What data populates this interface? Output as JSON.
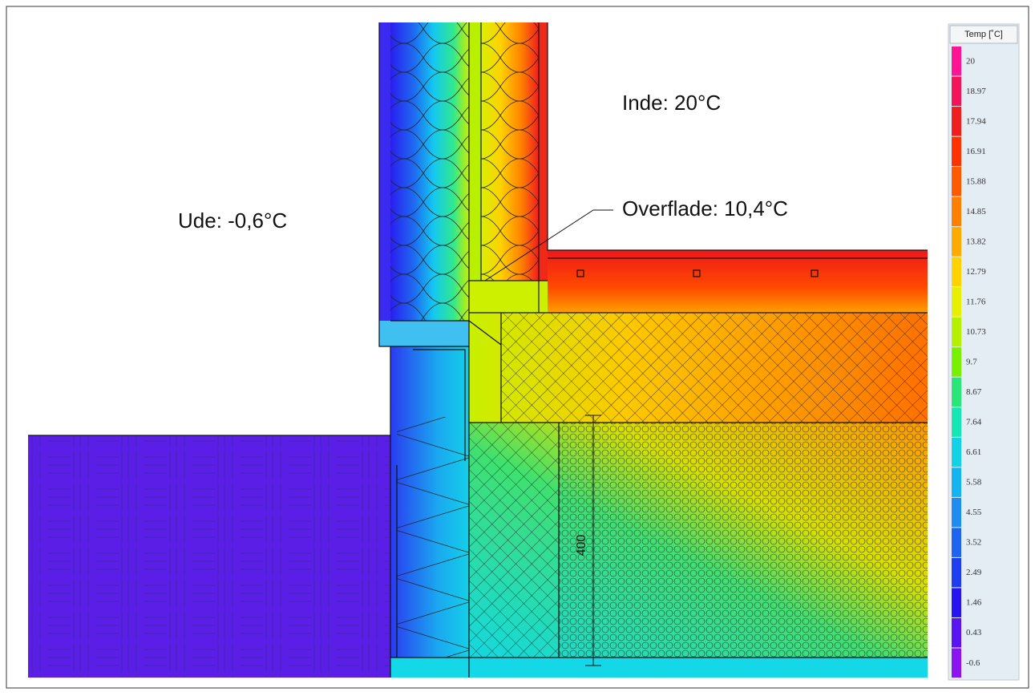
{
  "labels": {
    "inside": "Inde: 20°C",
    "outside": "Ude: -0,6°C",
    "surface": "Overflade: 10,4°C",
    "dimension": "400"
  },
  "legend": {
    "title": "Temp [˚C]",
    "entries": [
      {
        "label": "20",
        "color": "#ff1493"
      },
      {
        "label": "18.97",
        "color": "#f5145a"
      },
      {
        "label": "17.94",
        "color": "#f01e1e"
      },
      {
        "label": "16.91",
        "color": "#ff3200"
      },
      {
        "label": "15.88",
        "color": "#ff5a00"
      },
      {
        "label": "14.85",
        "color": "#ff8000"
      },
      {
        "label": "13.82",
        "color": "#ffaa00"
      },
      {
        "label": "12.79",
        "color": "#ffd200"
      },
      {
        "label": "11.76",
        "color": "#e6f000"
      },
      {
        "label": "10.73",
        "color": "#b4f000"
      },
      {
        "label": "9.7",
        "color": "#78f000"
      },
      {
        "label": "8.67",
        "color": "#28e678"
      },
      {
        "label": "7.64",
        "color": "#14e6b4"
      },
      {
        "label": "6.61",
        "color": "#14d2e6"
      },
      {
        "label": "5.58",
        "color": "#14b4f0"
      },
      {
        "label": "4.55",
        "color": "#1e8cf0"
      },
      {
        "label": "3.52",
        "color": "#1e64f0"
      },
      {
        "label": "2.49",
        "color": "#1e3cf0"
      },
      {
        "label": "1.46",
        "color": "#2814f0"
      },
      {
        "label": "0.43",
        "color": "#5a14f0"
      },
      {
        "label": "-0.6",
        "color": "#8c14f0"
      }
    ]
  }
}
